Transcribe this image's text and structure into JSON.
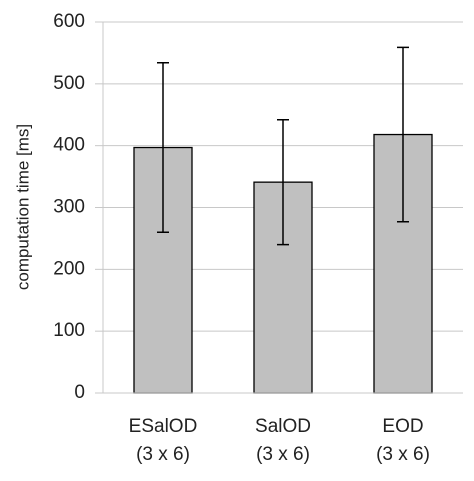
{
  "chart_data": {
    "type": "bar",
    "y_label": "computation time [ms]",
    "categories": [
      "ESalOD\n(3 x 6)",
      "SalOD\n(3 x 6)",
      "EOD\n(3 x 6)"
    ],
    "values": [
      397,
      341,
      418
    ],
    "errors": [
      137,
      101,
      141
    ],
    "color": "#c0c0c0",
    "ylim": [
      0,
      600
    ],
    "yticks": [
      0,
      100,
      200,
      300,
      400,
      500,
      600
    ],
    "grid": true
  }
}
